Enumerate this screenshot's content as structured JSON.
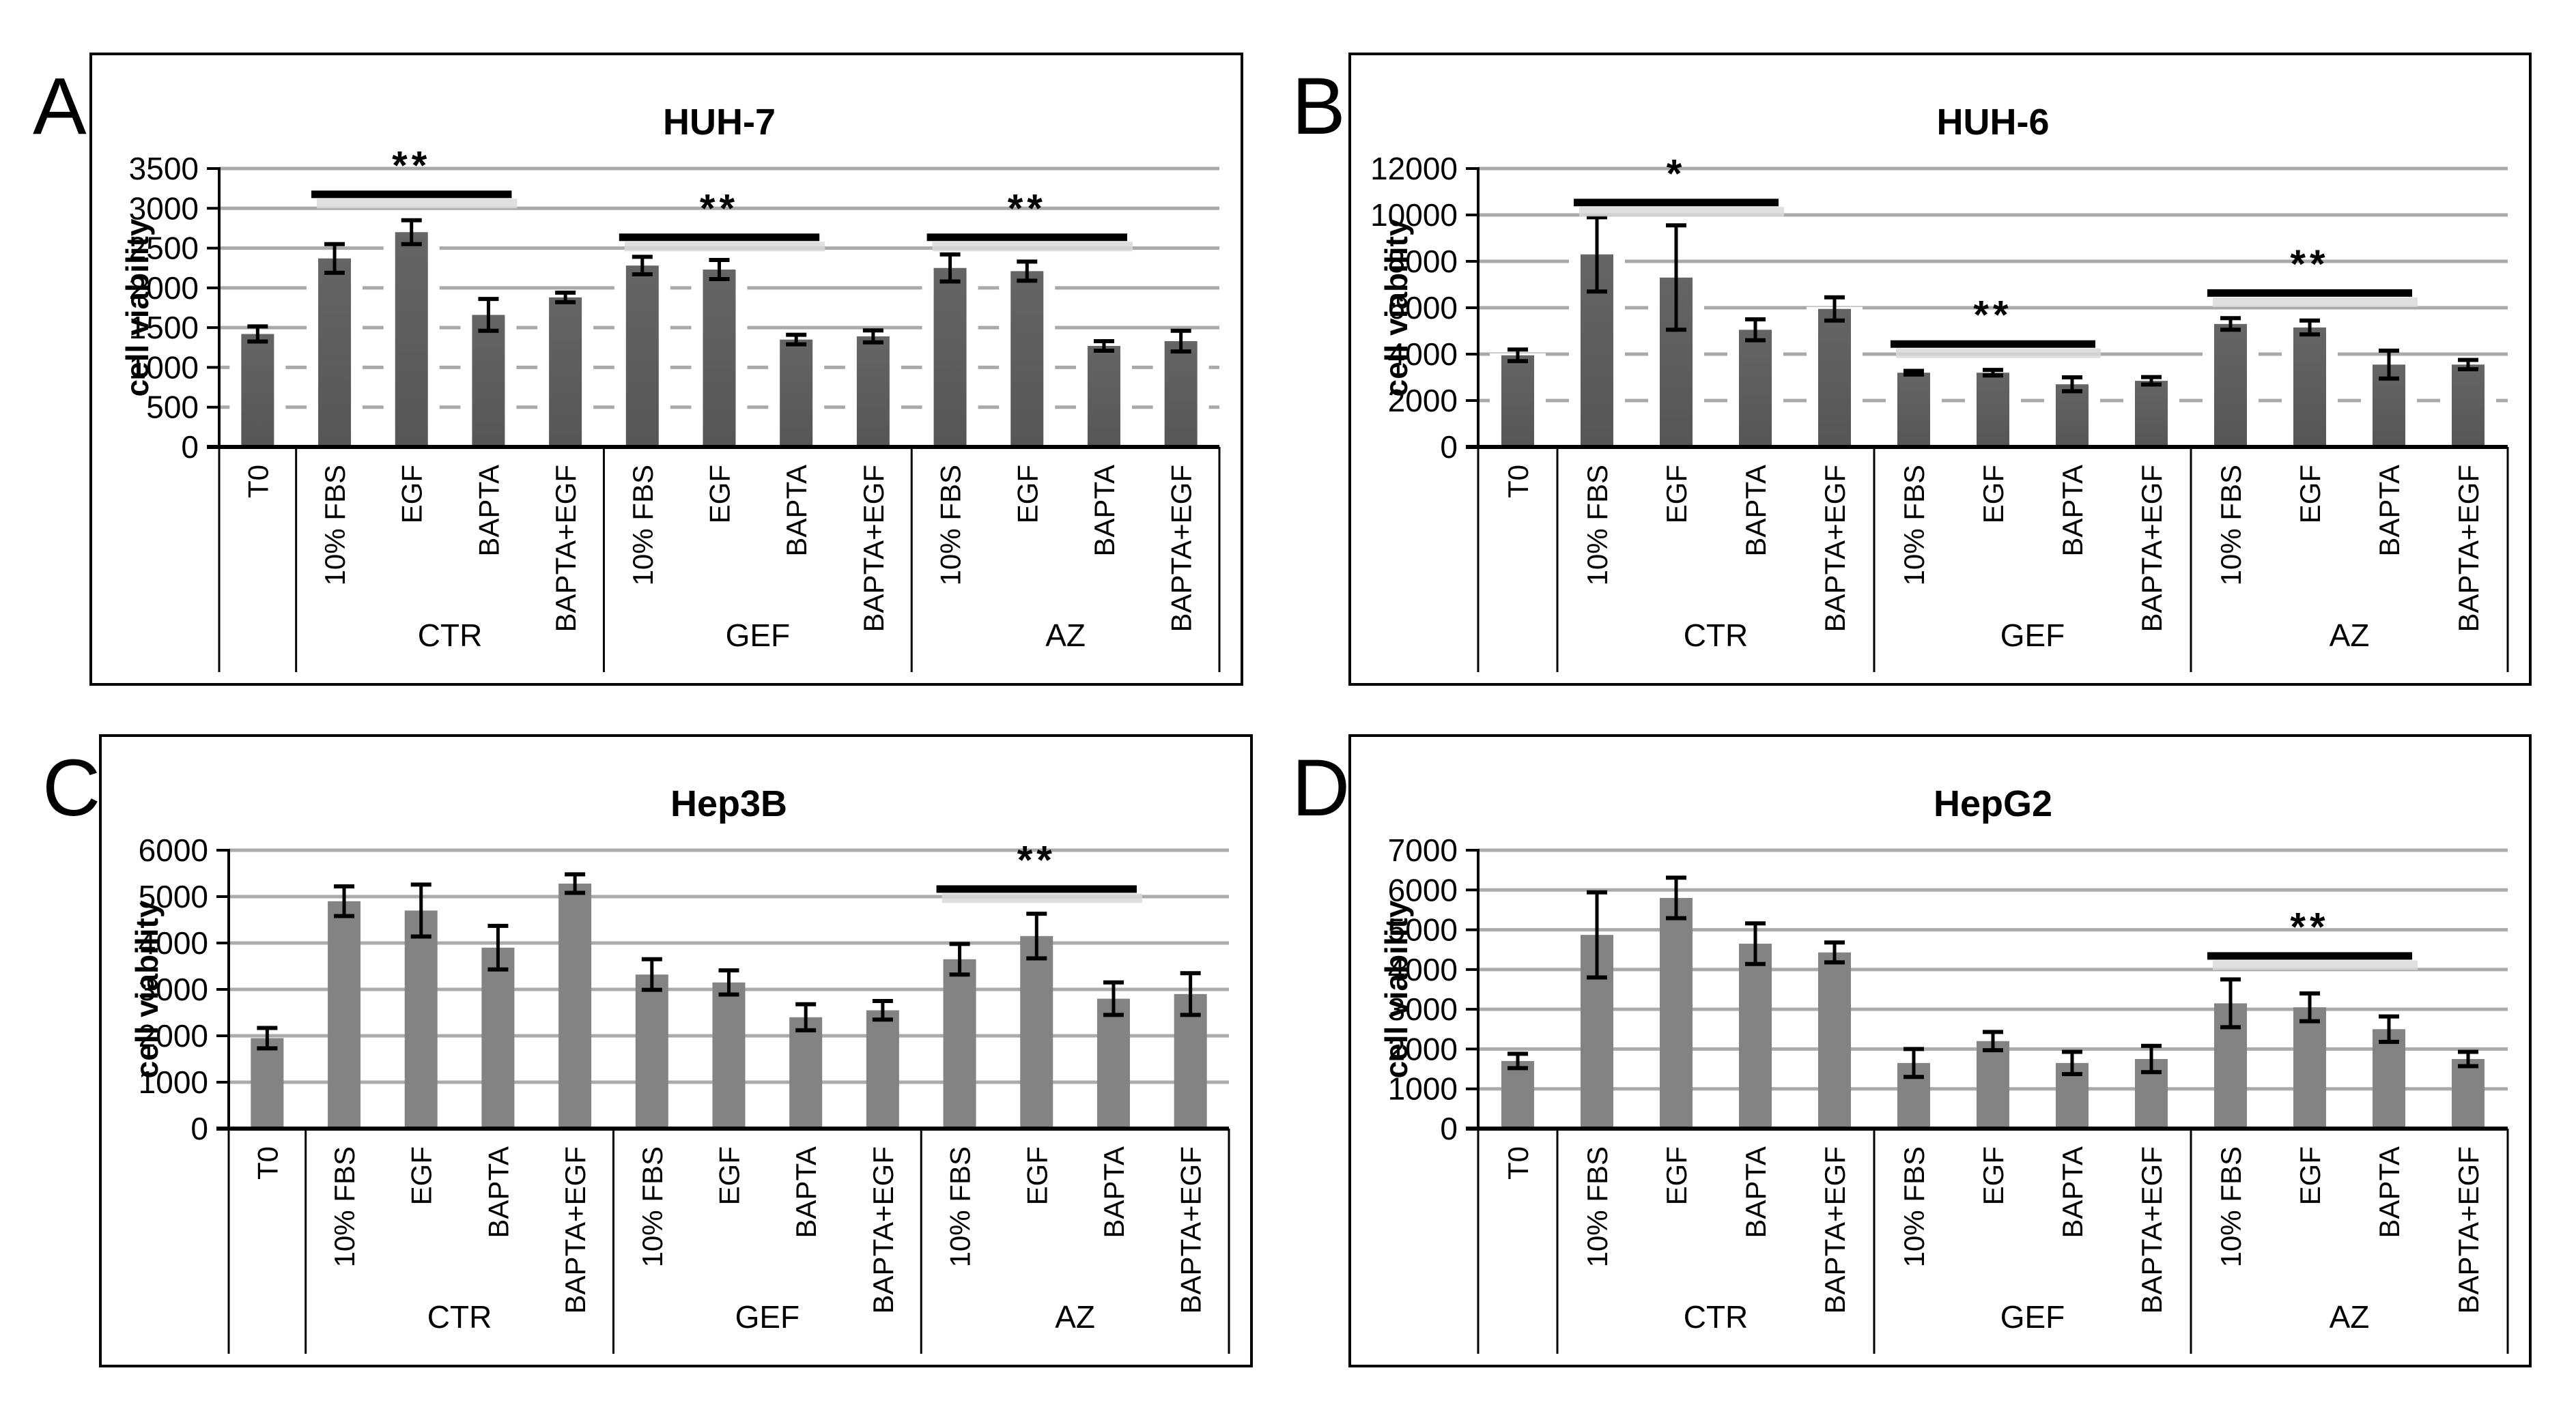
{
  "figure_background": "#ffffff",
  "chart_data": [
    {
      "type": "bar",
      "panel_letter": "A",
      "title": "HUH-7",
      "ylabel": "cell viability",
      "ylim": [
        0,
        3500
      ],
      "ytick_step": 500,
      "yticks": [
        0,
        500,
        1000,
        1500,
        2000,
        2500,
        3000,
        3500
      ],
      "categories": [
        "T0",
        "10% FBS",
        "EGF",
        "BAPTA",
        "BAPTA+EGF",
        "10% FBS",
        "EGF",
        "BAPTA",
        "BAPTA+EGF",
        "10% FBS",
        "EGF",
        "BAPTA",
        "BAPTA+EGF"
      ],
      "groups": [
        {
          "label": "",
          "span": 1
        },
        {
          "label": "CTR",
          "span": 4
        },
        {
          "label": "GEF",
          "span": 4
        },
        {
          "label": "AZ",
          "span": 4
        }
      ],
      "values": [
        1420,
        2370,
        2700,
        1660,
        1880,
        2280,
        2230,
        1350,
        1390,
        2250,
        2210,
        1270,
        1330
      ],
      "errors": [
        95,
        180,
        150,
        200,
        60,
        110,
        120,
        60,
        75,
        170,
        120,
        60,
        130
      ],
      "significance": [
        {
          "from": 1,
          "to": 3,
          "y": 3180,
          "label": "**"
        },
        {
          "from": 5,
          "to": 7,
          "y": 2640,
          "label": "**"
        },
        {
          "from": 9,
          "to": 11,
          "y": 2640,
          "label": "**"
        }
      ],
      "bar_color": "#565656",
      "bar_color_top": "#656565",
      "bar_style": "gradient-glow",
      "gridline_color": "#a9a9a9",
      "legend": "none",
      "grid": "horizontal-major"
    },
    {
      "type": "bar",
      "panel_letter": "B",
      "title": "HUH-6",
      "ylabel": "cell viability",
      "ylim": [
        0,
        12000
      ],
      "ytick_step": 2000,
      "yticks": [
        0,
        2000,
        4000,
        6000,
        8000,
        10000,
        12000
      ],
      "categories": [
        "T0",
        "10% FBS",
        "EGF",
        "BAPTA",
        "BAPTA+EGF",
        "10% FBS",
        "EGF",
        "BAPTA",
        "BAPTA+EGF",
        "10% FBS",
        "EGF",
        "BAPTA",
        "BAPTA+EGF"
      ],
      "groups": [
        {
          "label": "",
          "span": 1
        },
        {
          "label": "CTR",
          "span": 4
        },
        {
          "label": "GEF",
          "span": 4
        },
        {
          "label": "AZ",
          "span": 4
        }
      ],
      "values": [
        3950,
        8300,
        7300,
        5050,
        5950,
        3200,
        3200,
        2700,
        2850,
        5300,
        5150,
        3550,
        3550
      ],
      "errors": [
        250,
        1600,
        2250,
        450,
        500,
        80,
        120,
        300,
        160,
        250,
        300,
        600,
        200
      ],
      "significance": [
        {
          "from": 1,
          "to": 3,
          "y": 10550,
          "label": "*"
        },
        {
          "from": 5,
          "to": 7,
          "y": 4450,
          "label": "**"
        },
        {
          "from": 9,
          "to": 11,
          "y": 6650,
          "label": "**"
        }
      ],
      "bar_color": "#565656",
      "bar_color_top": "#656565",
      "bar_style": "gradient-glow",
      "gridline_color": "#a9a9a9",
      "legend": "none",
      "grid": "horizontal-major"
    },
    {
      "type": "bar",
      "panel_letter": "C",
      "title": "Hep3B",
      "ylabel": "cell viability",
      "ylim": [
        0,
        6000
      ],
      "ytick_step": 1000,
      "yticks": [
        0,
        1000,
        2000,
        3000,
        4000,
        5000,
        6000
      ],
      "categories": [
        "T0",
        "10% FBS",
        "EGF",
        "BAPTA",
        "BAPTA+EGF",
        "10% FBS",
        "EGF",
        "BAPTA",
        "BAPTA+EGF",
        "10% FBS",
        "EGF",
        "BAPTA",
        "BAPTA+EGF"
      ],
      "groups": [
        {
          "label": "",
          "span": 1
        },
        {
          "label": "CTR",
          "span": 4
        },
        {
          "label": "GEF",
          "span": 4
        },
        {
          "label": "AZ",
          "span": 4
        }
      ],
      "values": [
        1950,
        4900,
        4700,
        3900,
        5280,
        3320,
        3150,
        2400,
        2550,
        3650,
        4150,
        2800,
        2900
      ],
      "errors": [
        220,
        320,
        560,
        470,
        200,
        330,
        260,
        280,
        200,
        330,
        480,
        350,
        450
      ],
      "significance": [
        {
          "from": 9,
          "to": 11,
          "y": 5170,
          "label": "**"
        }
      ],
      "bar_color": "#838383",
      "bar_color_top": "#838383",
      "bar_style": "flat",
      "gridline_color": "#ababab",
      "legend": "none",
      "grid": "horizontal-major"
    },
    {
      "type": "bar",
      "panel_letter": "D",
      "title": "HepG2",
      "ylabel": "cell viability",
      "ylim": [
        0,
        7000
      ],
      "ytick_step": 1000,
      "yticks": [
        0,
        1000,
        2000,
        3000,
        4000,
        5000,
        6000,
        7000
      ],
      "categories": [
        "T0",
        "10% FBS",
        "EGF",
        "BAPTA",
        "BAPTA+EGF",
        "10% FBS",
        "EGF",
        "BAPTA",
        "BAPTA+EGF",
        "10% FBS",
        "EGF",
        "BAPTA",
        "BAPTA+EGF"
      ],
      "groups": [
        {
          "label": "",
          "span": 1
        },
        {
          "label": "CTR",
          "span": 4
        },
        {
          "label": "GEF",
          "span": 4
        },
        {
          "label": "AZ",
          "span": 4
        }
      ],
      "values": [
        1700,
        4870,
        5800,
        4650,
        4430,
        1650,
        2200,
        1650,
        1750,
        3150,
        3050,
        2500,
        1750
      ],
      "errors": [
        180,
        1070,
        510,
        510,
        250,
        350,
        230,
        280,
        330,
        600,
        350,
        320,
        180
      ],
      "significance": [
        {
          "from": 9,
          "to": 11,
          "y": 4350,
          "label": "**"
        }
      ],
      "bar_color": "#838383",
      "bar_color_top": "#838383",
      "bar_style": "flat",
      "gridline_color": "#ababab",
      "legend": "none",
      "grid": "horizontal-major"
    }
  ]
}
